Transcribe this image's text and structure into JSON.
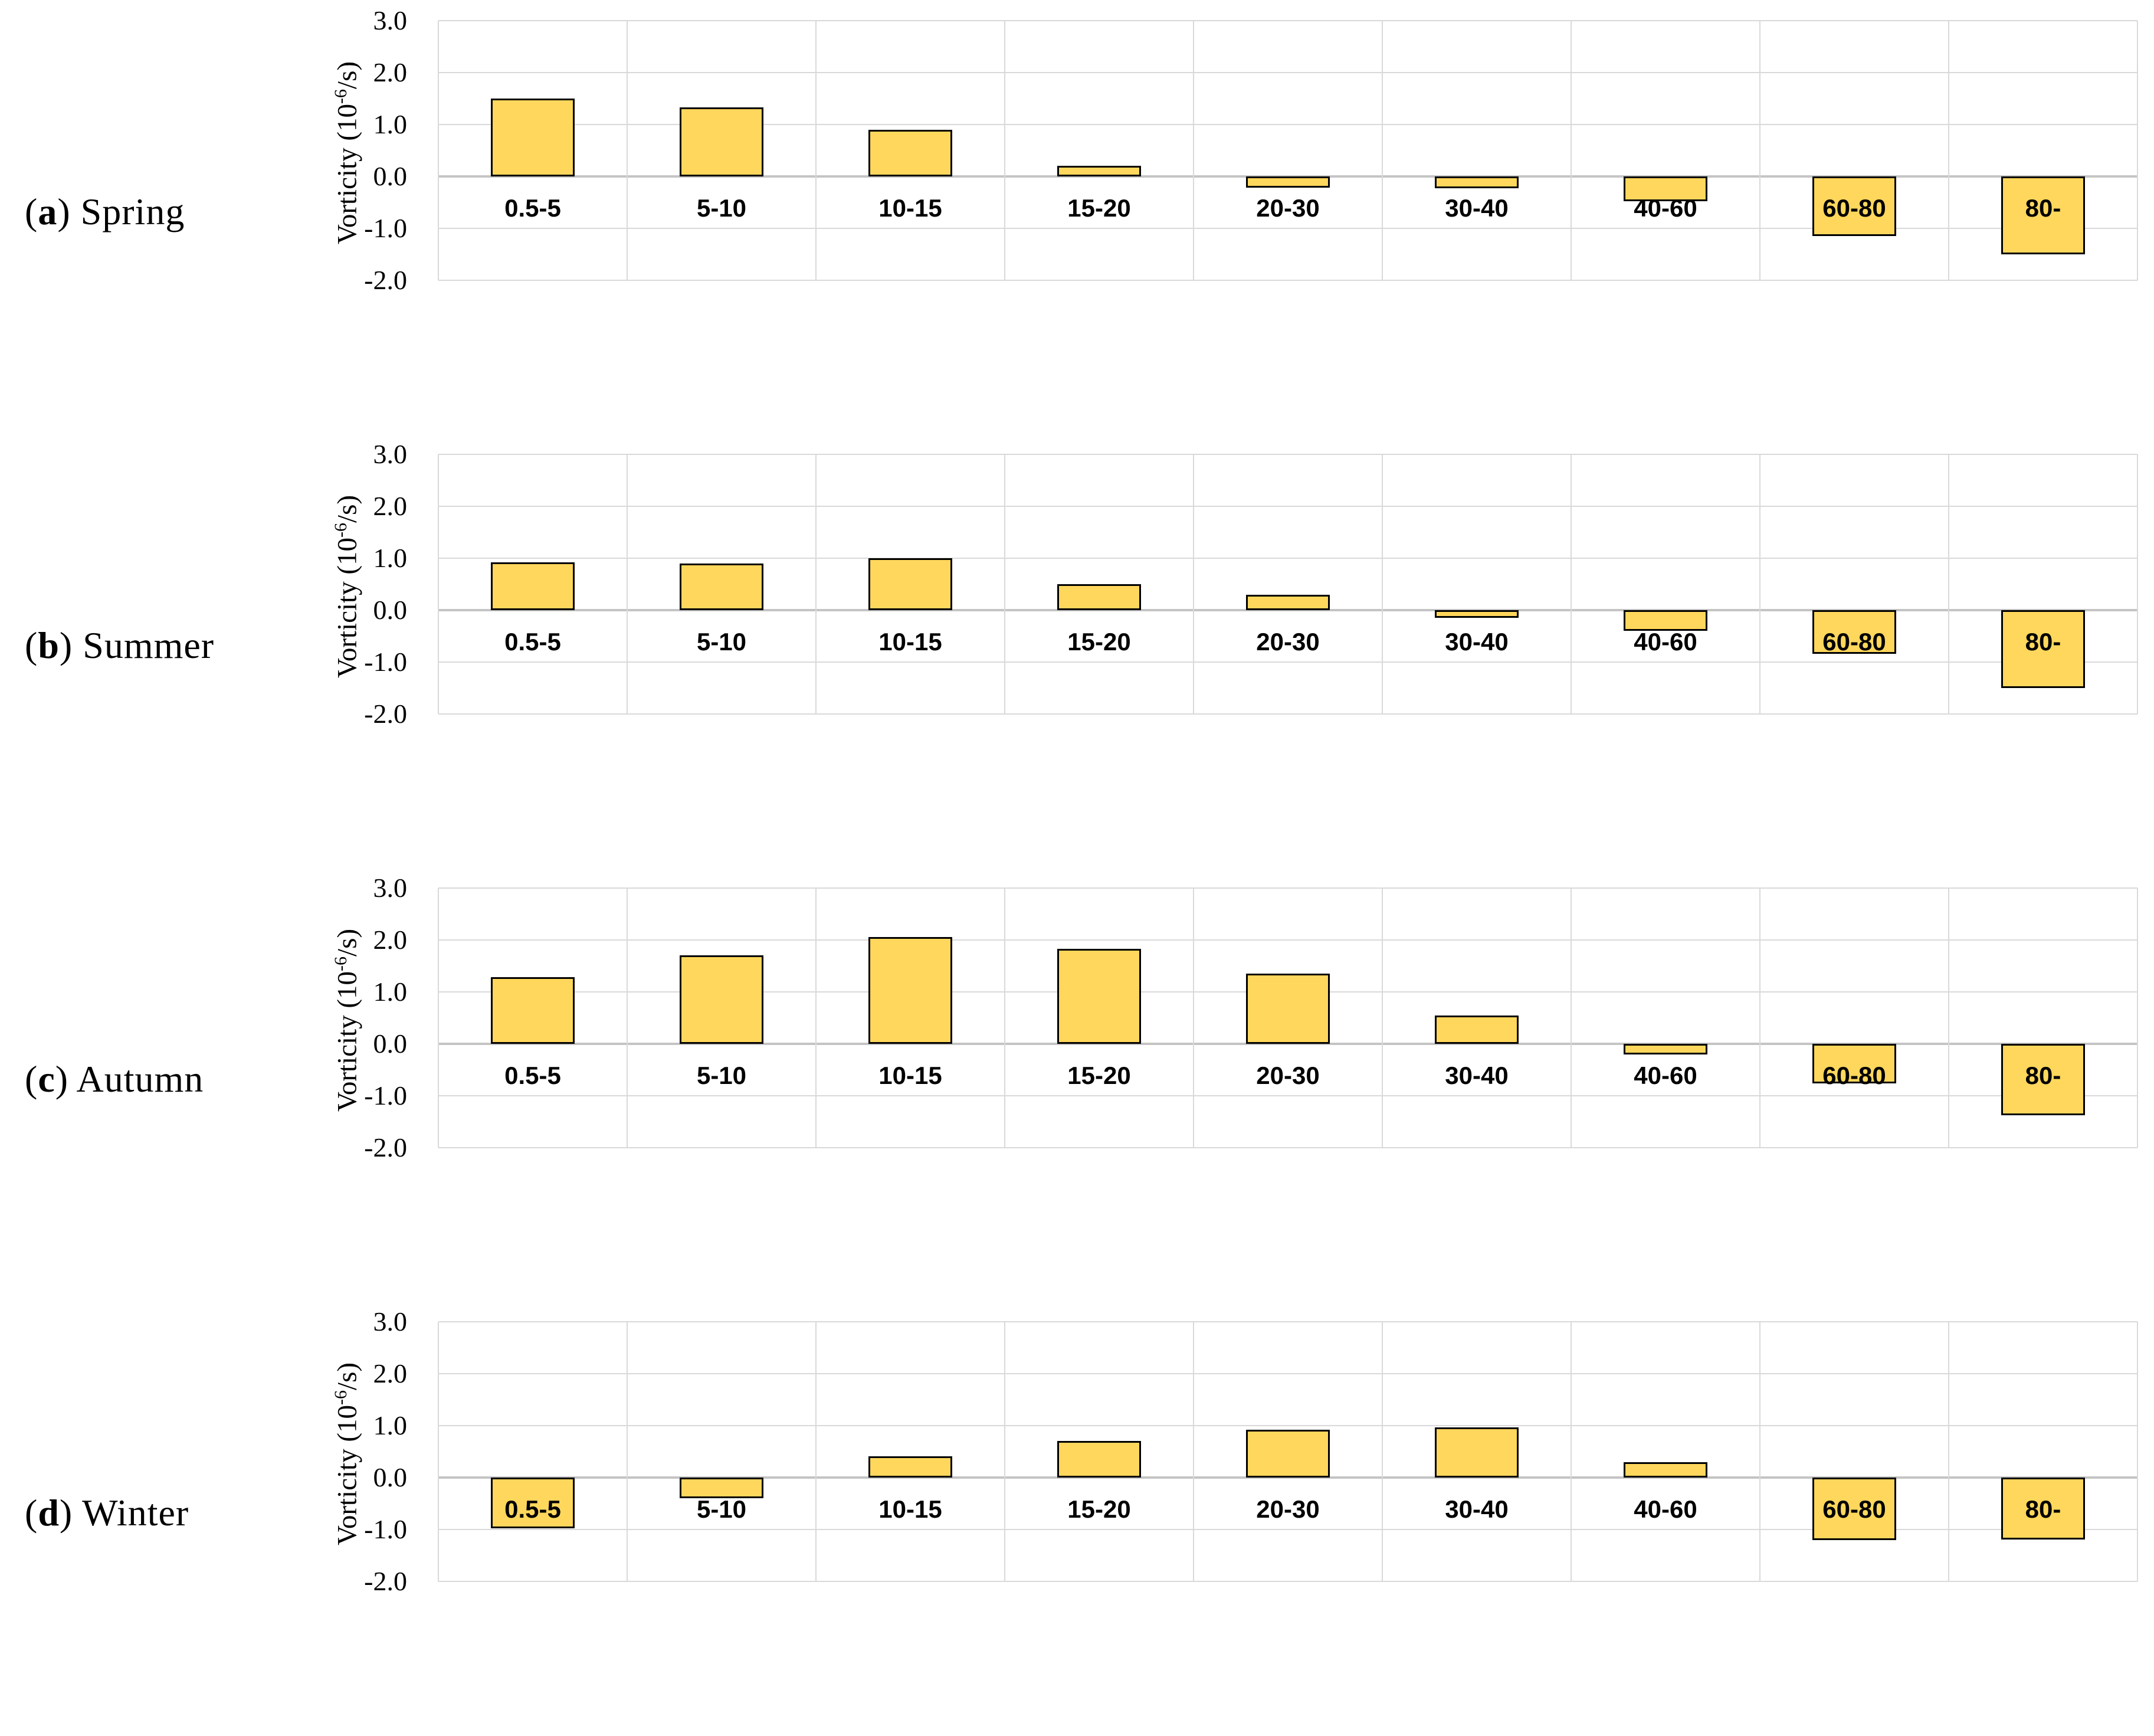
{
  "y_axis": {
    "ticks": [
      "3.0",
      "2.0",
      "1.0",
      "0.0",
      "-1.0",
      "-2.0"
    ],
    "title_prefix": "Vorticity (10",
    "title_sup": "-6",
    "title_suffix": "/s)"
  },
  "categories": [
    "0.5-5",
    "5-10",
    "10-15",
    "15-20",
    "20-30",
    "30-40",
    "40-60",
    "60-80",
    "80-"
  ],
  "colors": {
    "bar_fill": "#FFD75C",
    "bar_border": "#000000",
    "gridline": "#D9D9D9",
    "zero_line": "#C4C4C4"
  },
  "chart_data": [
    {
      "type": "bar",
      "title": "(a) Spring",
      "label_open": "(",
      "panel_letter": "a",
      "label_close": ") ",
      "season": "Spring",
      "categories": [
        "0.5-5",
        "5-10",
        "10-15",
        "15-20",
        "20-30",
        "30-40",
        "40-60",
        "60-80",
        "80-"
      ],
      "values": [
        1.5,
        1.33,
        0.9,
        0.2,
        -0.22,
        -0.23,
        -0.48,
        -1.15,
        -1.5
      ],
      "xlabel": "",
      "ylabel": "Vorticity (10-6/s)",
      "ylim": [
        -2.0,
        3.0
      ],
      "grid": true,
      "legend": "none"
    },
    {
      "type": "bar",
      "title": "(b) Summer",
      "label_open": "(",
      "panel_letter": "b",
      "label_close": ") ",
      "season": "Summer",
      "categories": [
        "0.5-5",
        "5-10",
        "10-15",
        "15-20",
        "20-30",
        "30-40",
        "40-60",
        "60-80",
        "80-"
      ],
      "values": [
        0.92,
        0.9,
        1.0,
        0.5,
        0.3,
        -0.15,
        -0.4,
        -0.84,
        -1.5
      ],
      "xlabel": "",
      "ylabel": "Vorticity (10-6/s)",
      "ylim": [
        -2.0,
        3.0
      ],
      "grid": true,
      "legend": "none"
    },
    {
      "type": "bar",
      "title": "(c) Autumn",
      "label_open": "(",
      "panel_letter": "c",
      "label_close": ") ",
      "season": "Autumn",
      "categories": [
        "0.5-5",
        "5-10",
        "10-15",
        "15-20",
        "20-30",
        "30-40",
        "40-60",
        "60-80",
        "80-"
      ],
      "values": [
        1.28,
        1.7,
        2.06,
        1.83,
        1.35,
        0.54,
        -0.21,
        -0.76,
        -1.37
      ],
      "xlabel": "",
      "ylabel": "Vorticity (10-6/s)",
      "ylim": [
        -2.0,
        3.0
      ],
      "grid": true,
      "legend": "none"
    },
    {
      "type": "bar",
      "title": "(d) Winter",
      "label_open": "(",
      "panel_letter": "d",
      "label_close": ") ",
      "season": "Winter",
      "categories": [
        "0.5-5",
        "5-10",
        "10-15",
        "15-20",
        "20-30",
        "30-40",
        "40-60",
        "60-80",
        "80-"
      ],
      "values": [
        -0.98,
        -0.4,
        0.41,
        0.71,
        0.92,
        0.97,
        0.3,
        -1.21,
        -1.19
      ],
      "xlabel": "",
      "ylabel": "Vorticity (10-6/s)",
      "ylim": [
        -2.0,
        3.0
      ],
      "grid": true,
      "legend": "none"
    }
  ]
}
